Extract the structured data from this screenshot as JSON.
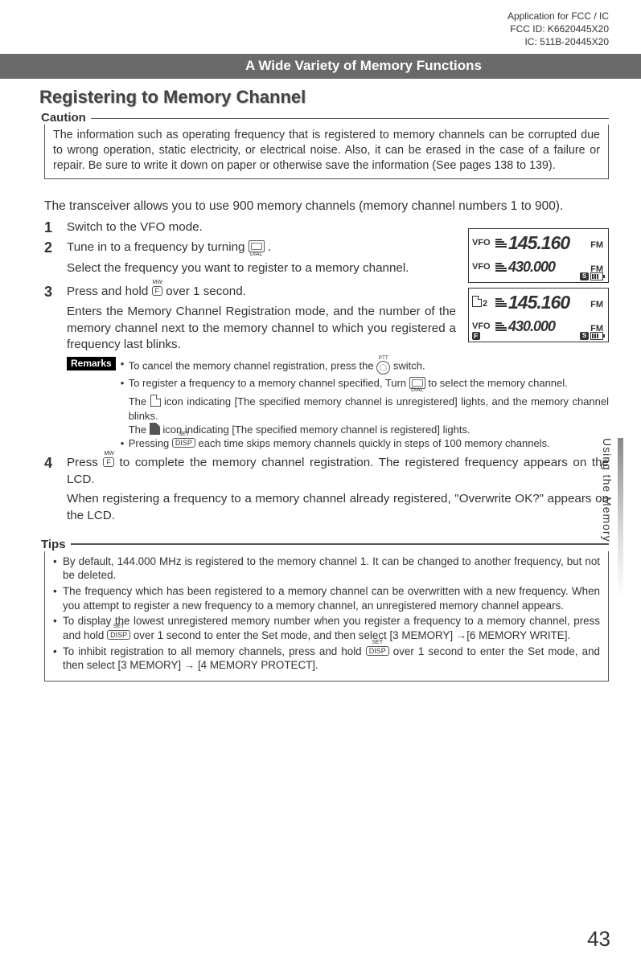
{
  "header": {
    "line1": "Application for FCC / IC",
    "line2": "FCC ID: K6620445X20",
    "line3": "IC: 511B-20445X20"
  },
  "section_bar": "A Wide Variety of Memory Functions",
  "title": "Registering to Memory Channel",
  "caution": {
    "label": "Caution",
    "text": "The information such as operating frequency that is registered to memory channels can be corrupted due to wrong operation, static electricity, or electrical noise. Also, it can be erased in the case of a failure or repair. Be sure to write it down on paper or otherwise save the information (See pages 138 to 139)."
  },
  "lead": "The transceiver allows you to use 900 memory channels (memory channel numbers 1 to 900).",
  "steps": {
    "s1": {
      "num": "1",
      "text": "Switch to the VFO mode."
    },
    "s2": {
      "num": "2",
      "line1a": "Tune in to a frequency by turning ",
      "line1b": ".",
      "line2": "Select the frequency you want to register to a memory channel."
    },
    "s3": {
      "num": "3",
      "line1a": "Press and hold ",
      "line1b": " over 1 second.",
      "line2": "Enters the Memory Channel Registration mode, and the number of the memory channel next to the memory channel to which you registered a frequency last blinks."
    },
    "remarks": {
      "label": "Remarks",
      "b1a": "To cancel the memory channel registration, press the ",
      "b1b": " switch.",
      "b2a": "To register a frequency to a memory channel specified, Turn ",
      "b2b": " to select the memory channel.",
      "b2c1": "The ",
      "b2c2": " icon indicating [The specified memory channel is unregistered] lights, and the memory channel blinks.",
      "b2d1": "The ",
      "b2d2": " icon indicating [The specified memory channel is registered] lights.",
      "b3a": "Pressing ",
      "b3b": " each time skips memory channels quickly in steps of 100 memory channels."
    },
    "s4": {
      "num": "4",
      "line1a": "Press ",
      "line1b": " to complete the memory channel registration. The registered frequency appears on the LCD.",
      "line2": "When registering a frequency to a memory channel already registered, \"Overwrite OK?\" appears on the LCD."
    }
  },
  "tips": {
    "label": "Tips",
    "t1": "By default, 144.000 MHz is registered to the memory channel 1. It can be changed to another frequency, but not be deleted.",
    "t2": "The frequency which has been registered to a memory channel can be overwritten with a new frequency. When you attempt to register a new frequency to a memory channel, an unregistered memory channel appears.",
    "t3a": "To display the lowest unregistered memory number when you register a frequency to a memory channel, press and hold ",
    "t3b": " over 1 second to enter the Set mode, and then select [3 MEMORY] →[6 MEMORY WRITE].",
    "t4a": "To inhibit registration to all memory channels, press and hold ",
    "t4b": " over 1 second to enter the Set mode, and then select [3 MEMORY] → [4 MEMORY PROTECT]."
  },
  "keys": {
    "dial": "DIAL",
    "f": "F",
    "f_sup": "MW",
    "disp": "DISP",
    "disp_sup": "SET",
    "ptt": "PTT"
  },
  "lcd": {
    "vfo": "VFO",
    "freq1": "145.160",
    "freq2": "430.000",
    "fm": "FM",
    "s": "S",
    "ch2": "2",
    "f": "F"
  },
  "side_tab": "Using the Memory",
  "page_number": "43"
}
